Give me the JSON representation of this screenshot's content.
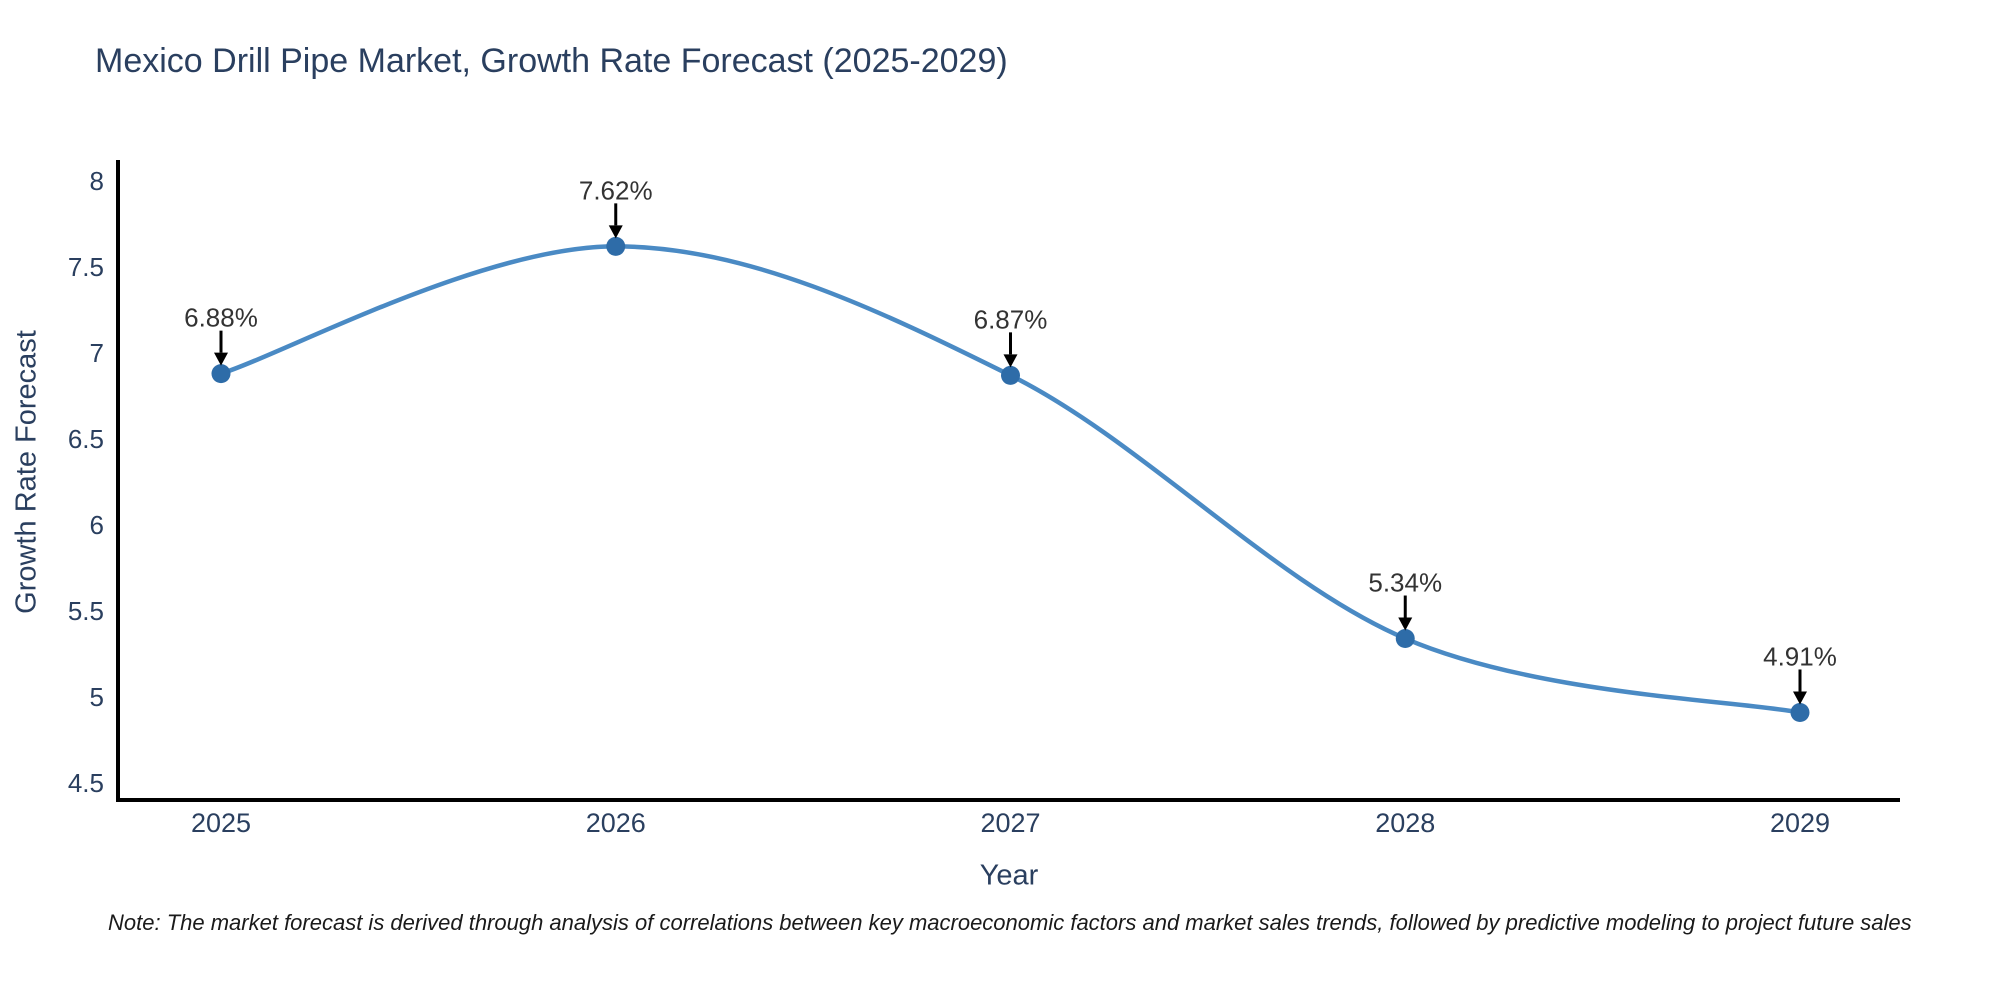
{
  "chart_data": {
    "type": "line",
    "title": "Mexico Drill Pipe Market, Growth Rate Forecast (2025-2029)",
    "xlabel": "Year",
    "ylabel": "Growth Rate Forecast",
    "categories": [
      "2025",
      "2026",
      "2027",
      "2028",
      "2029"
    ],
    "values": [
      6.88,
      7.62,
      6.87,
      5.34,
      4.91
    ],
    "point_labels": [
      "6.88%",
      "7.62%",
      "6.87%",
      "5.34%",
      "4.91%"
    ],
    "yticks": [
      "4.5",
      "5",
      "5.5",
      "6",
      "6.5",
      "7",
      "7.5",
      "8"
    ],
    "ylim": [
      4.4,
      8.12
    ],
    "line_shape": "spline",
    "grid": false,
    "legend_position": "none",
    "colors": {
      "line": "#4a8ac4",
      "marker": "#2e6ca8",
      "arrow": "#000000",
      "axis": "#000000",
      "tick_text": "#2a3f5f",
      "title_text": "#2a3f5f",
      "annotation_text": "#333333"
    }
  },
  "note": {
    "text": "Note: The market forecast is derived through analysis of correlations between key macroeconomic factors and market sales trends, followed by predictive modeling to project future sales"
  }
}
